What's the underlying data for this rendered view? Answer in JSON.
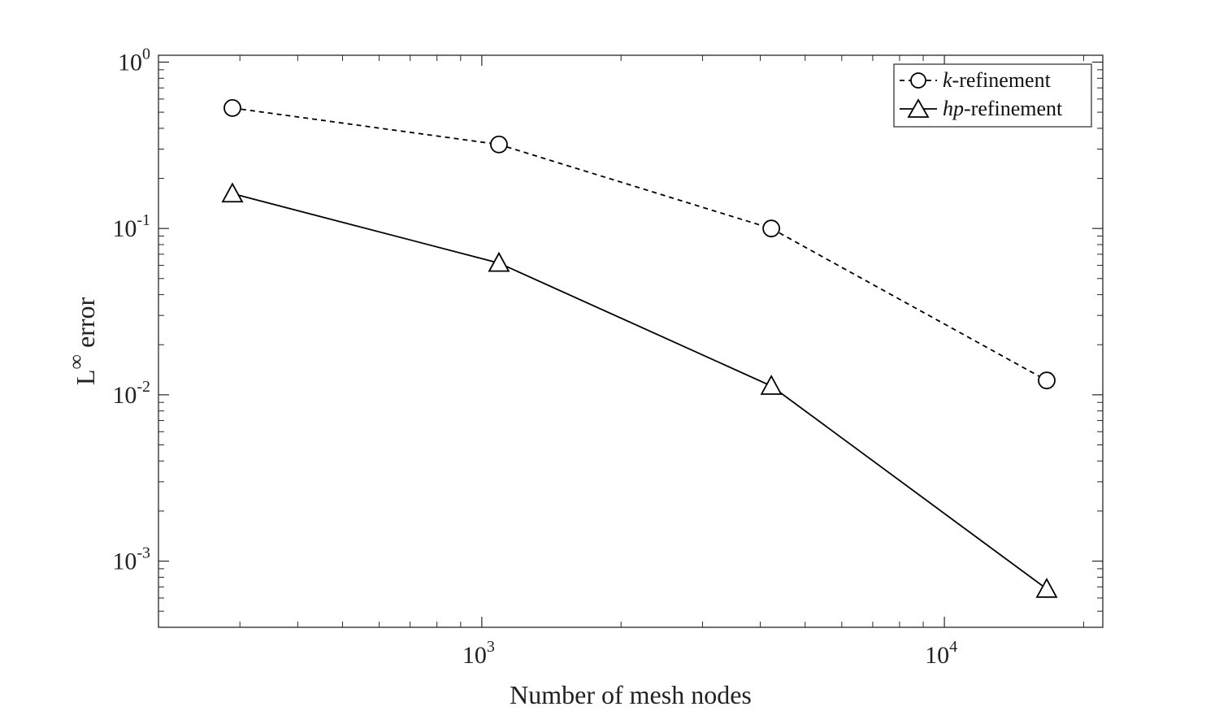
{
  "chart_data": {
    "type": "line",
    "x_scale": "log",
    "y_scale": "log",
    "xlim": [
      200,
      22000
    ],
    "ylim": [
      0.0004,
      1.1
    ],
    "x_ticks": [
      {
        "value": 1000,
        "base": "10",
        "exp": "3"
      },
      {
        "value": 10000,
        "base": "10",
        "exp": "4"
      }
    ],
    "y_ticks": [
      {
        "value": 1,
        "base": "10",
        "exp": "0"
      },
      {
        "value": 0.1,
        "base": "10",
        "exp": "-1"
      },
      {
        "value": 0.01,
        "base": "10",
        "exp": "-2"
      },
      {
        "value": 0.001,
        "base": "10",
        "exp": "-3"
      }
    ],
    "xlabel": "Number of mesh nodes",
    "ylabel": {
      "main": "L",
      "sup": "∞",
      "rest": " error"
    },
    "grid": false,
    "legend_position": "top-right",
    "series": [
      {
        "name": {
          "italic": "k",
          "rest": "-refinement"
        },
        "line_style": "dashed",
        "marker": "circle",
        "color": "#000000",
        "x": [
          289,
          1089,
          4225,
          16641
        ],
        "y": [
          0.53,
          0.32,
          0.1,
          0.0122
        ]
      },
      {
        "name": {
          "italic": "hp",
          "rest": "-refinement"
        },
        "line_style": "solid",
        "marker": "triangle",
        "color": "#000000",
        "x": [
          289,
          1089,
          4225,
          16641
        ],
        "y": [
          0.162,
          0.062,
          0.0113,
          0.00068
        ]
      }
    ]
  }
}
